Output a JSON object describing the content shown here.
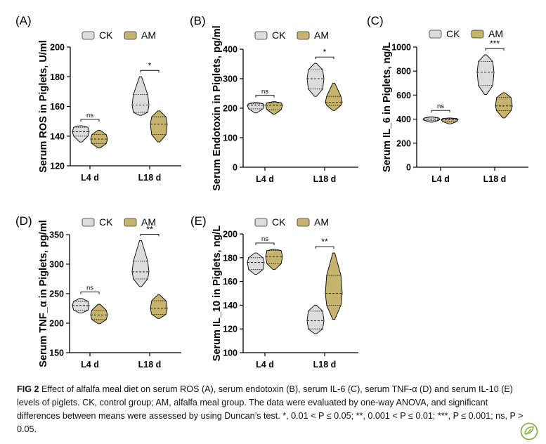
{
  "colors": {
    "ck": "#dcdcdc",
    "am": "#c6b46e",
    "stroke": "#000000"
  },
  "legend": [
    "CK",
    "AM"
  ],
  "caption": {
    "lead": "FIG 2",
    "text": "Effect of alfalfa meal diet on serum ROS (A), serum endotoxin (B), serum IL-6 (C), serum TNF-α (D) and serum IL-10 (E) levels of piglets. CK, control group; AM, alfalfa meal group. The data were evaluated by one-way ANOVA, and significant differences between means were assessed by using Duncan’s test. *, 0.01 < P ≤ 0.05; **, 0.001 < P ≤ 0.01; ***, P ≤ 0.001; ns, P > 0.05."
  },
  "badge_icon": "leaf-logo-icon",
  "chart_data": [
    {
      "type": "violin",
      "panel": "(A)",
      "ylabel": "Serum ROS in Piglets, U/ml",
      "categories": [
        "L4 d",
        "L18 d"
      ],
      "ylim": [
        120,
        200
      ],
      "yticks": [
        120,
        140,
        160,
        180,
        200
      ],
      "series": [
        {
          "name": "CK",
          "groups": [
            {
              "min": 136,
              "q1": 140,
              "median": 143,
              "q3": 146,
              "max": 147
            },
            {
              "min": 154,
              "q1": 156,
              "median": 161,
              "q3": 168,
              "max": 180
            }
          ]
        },
        {
          "name": "AM",
          "groups": [
            {
              "min": 132,
              "q1": 135,
              "median": 138,
              "q3": 141,
              "max": 144
            },
            {
              "min": 136,
              "q1": 141,
              "median": 148,
              "q3": 153,
              "max": 157
            }
          ]
        }
      ],
      "significance": [
        "ns",
        "*"
      ]
    },
    {
      "type": "violin",
      "panel": "(B)",
      "ylabel": "Serum Endotoxin in Piglets, pg/ml",
      "categories": [
        "L4 d",
        "L18 d"
      ],
      "ylim": [
        0,
        400
      ],
      "yticks": [
        0,
        100,
        200,
        300,
        400
      ],
      "series": [
        {
          "name": "CK",
          "groups": [
            {
              "min": 184,
              "q1": 198,
              "median": 210,
              "q3": 215,
              "max": 220
            },
            {
              "min": 240,
              "q1": 265,
              "median": 300,
              "q3": 330,
              "max": 352
            }
          ]
        },
        {
          "name": "AM",
          "groups": [
            {
              "min": 180,
              "q1": 195,
              "median": 210,
              "q3": 218,
              "max": 222
            },
            {
              "min": 192,
              "q1": 210,
              "median": 220,
              "q3": 240,
              "max": 285
            }
          ]
        }
      ],
      "significance": [
        "ns",
        "*"
      ]
    },
    {
      "type": "violin",
      "panel": "(C)",
      "ylabel": "Serum IL_6 in Piglets, ng/L",
      "categories": [
        "L4 d",
        "L18 d"
      ],
      "ylim": [
        0,
        1000
      ],
      "yticks": [
        0,
        200,
        400,
        600,
        800,
        1000
      ],
      "series": [
        {
          "name": "CK",
          "groups": [
            {
              "min": 375,
              "q1": 390,
              "median": 400,
              "q3": 410,
              "max": 420
            },
            {
              "min": 605,
              "q1": 680,
              "median": 790,
              "q3": 880,
              "max": 935
            }
          ]
        },
        {
          "name": "AM",
          "groups": [
            {
              "min": 360,
              "q1": 380,
              "median": 395,
              "q3": 405,
              "max": 410
            },
            {
              "min": 410,
              "q1": 470,
              "median": 510,
              "q3": 580,
              "max": 620
            }
          ]
        }
      ],
      "significance": [
        "ns",
        "***"
      ]
    },
    {
      "type": "violin",
      "panel": "(D)",
      "ylabel": "Serum TNF_α in Piglets, pg/ml",
      "categories": [
        "L4 d",
        "L18 d"
      ],
      "ylim": [
        150,
        350
      ],
      "yticks": [
        150,
        200,
        250,
        300,
        350
      ],
      "series": [
        {
          "name": "CK",
          "groups": [
            {
              "min": 217,
              "q1": 222,
              "median": 230,
              "q3": 237,
              "max": 242
            },
            {
              "min": 262,
              "q1": 275,
              "median": 287,
              "q3": 305,
              "max": 340
            }
          ]
        },
        {
          "name": "AM",
          "groups": [
            {
              "min": 199,
              "q1": 206,
              "median": 214,
              "q3": 222,
              "max": 232
            },
            {
              "min": 208,
              "q1": 215,
              "median": 225,
              "q3": 238,
              "max": 248
            }
          ]
        }
      ],
      "significance": [
        "ns",
        "**"
      ]
    },
    {
      "type": "violin",
      "panel": "(E)",
      "ylabel": "Serum IL_10 in Piglets, ng/L",
      "categories": [
        "L4 d",
        "L18 d"
      ],
      "ylim": [
        100,
        200
      ],
      "yticks": [
        100,
        120,
        140,
        160,
        180,
        200
      ],
      "series": [
        {
          "name": "CK",
          "groups": [
            {
              "min": 166,
              "q1": 170,
              "median": 176,
              "q3": 180,
              "max": 184
            },
            {
              "min": 116,
              "q1": 120,
              "median": 127,
              "q3": 135,
              "max": 140
            }
          ]
        },
        {
          "name": "AM",
          "groups": [
            {
              "min": 170,
              "q1": 175,
              "median": 181,
              "q3": 186,
              "max": 187
            },
            {
              "min": 128,
              "q1": 140,
              "median": 150,
              "q3": 165,
              "max": 184
            }
          ]
        }
      ],
      "significance": [
        "ns",
        "**"
      ]
    }
  ]
}
